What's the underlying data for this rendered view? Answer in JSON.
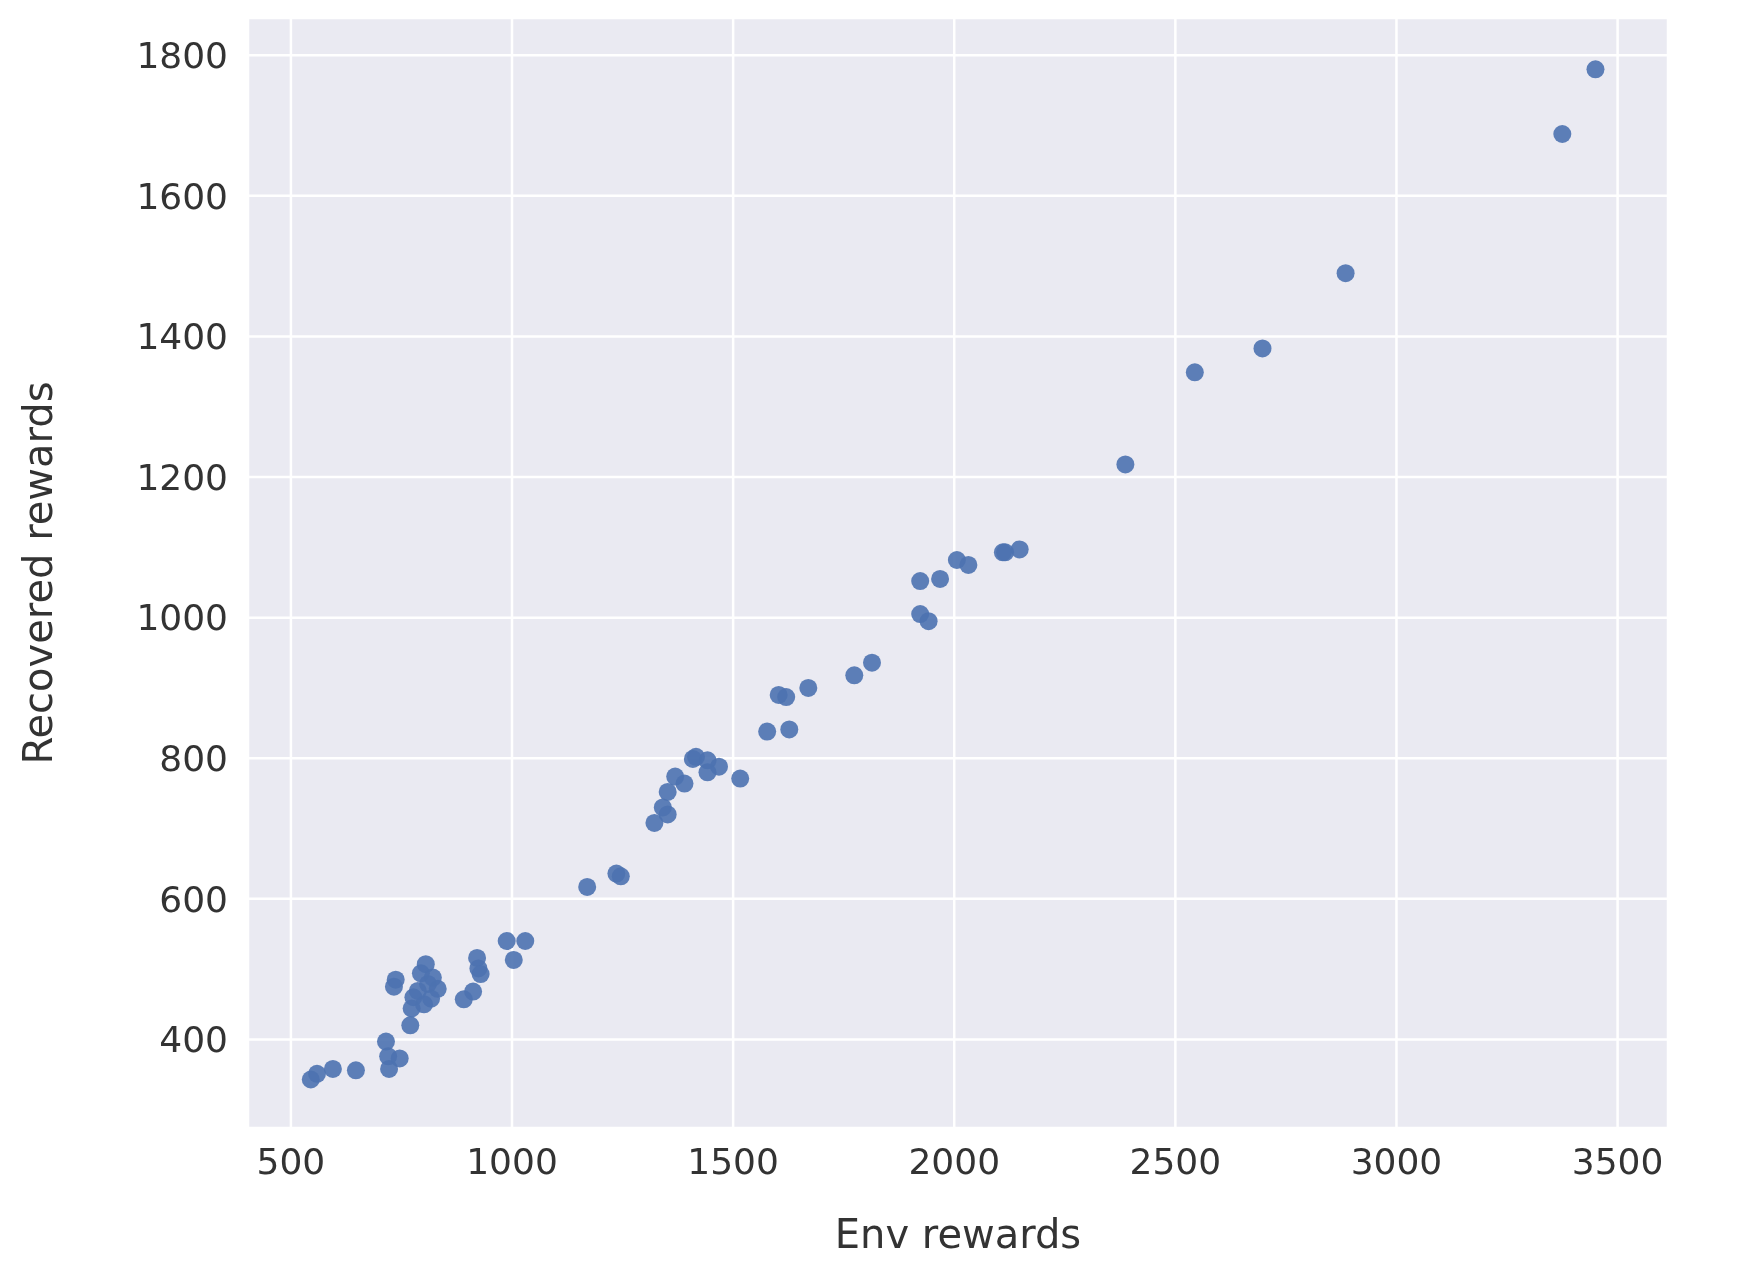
{
  "chart_data": {
    "type": "scatter",
    "xlabel": "Env rewards",
    "ylabel": "Recovered rewards",
    "xlim": [
      403,
      3614
    ],
    "ylim": [
      274,
      1853
    ],
    "xticks": [
      500,
      1000,
      1500,
      2000,
      2500,
      3000,
      3500
    ],
    "yticks": [
      400,
      600,
      800,
      1000,
      1200,
      1400,
      1600,
      1800
    ],
    "grid": true,
    "marker": "circle",
    "series": [
      {
        "color": "#4c72b0",
        "x": [
          3450,
          3375,
          2885,
          2697,
          2544,
          2387,
          2148,
          2110,
          2115,
          2006,
          2032,
          1968,
          1923,
          1923,
          1942,
          1814,
          1774,
          1670,
          1603,
          1620,
          1627,
          1577,
          1516,
          1468,
          1442,
          1442,
          1416,
          1409,
          1390,
          1369,
          1352,
          1352,
          1341,
          1322,
          1236,
          1246,
          1170,
          1030,
          988,
          1004,
          921,
          924,
          929,
          912,
          891,
          805,
          810,
          832,
          817,
          801,
          777,
          773,
          770,
          737,
          733,
          794,
          787,
          821,
          715,
          720,
          722,
          746,
          647,
          595,
          559,
          545
        ],
        "values": [
          1780,
          1688,
          1490,
          1383,
          1349,
          1218,
          1097,
          1093,
          1093,
          1082,
          1075,
          1055,
          1052,
          1005,
          995,
          936,
          918,
          900,
          890,
          887,
          841,
          838,
          771,
          788,
          797,
          780,
          802,
          799,
          764,
          774,
          752,
          720,
          730,
          708,
          636,
          632,
          617,
          540,
          540,
          513,
          516,
          501,
          493,
          468,
          457,
          507,
          479,
          472,
          458,
          450,
          460,
          444,
          420,
          485,
          475,
          494,
          469,
          488,
          397,
          376,
          358,
          373,
          356,
          358,
          351,
          343
        ]
      }
    ]
  }
}
